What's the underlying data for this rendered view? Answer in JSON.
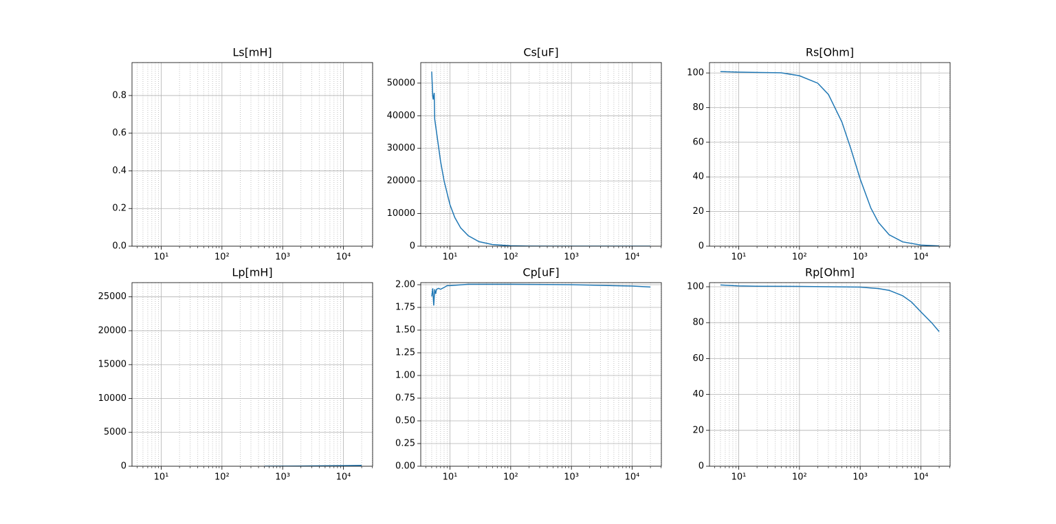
{
  "chart_data": [
    {
      "type": "line",
      "title": "Ls[mH]",
      "xscale": "log",
      "xlim": [
        3.3,
        30300
      ],
      "xticks": [
        {
          "value": 10,
          "label": "10¹"
        },
        {
          "value": 100,
          "label": "10²"
        },
        {
          "value": 1000,
          "label": "10³"
        },
        {
          "value": 10000,
          "label": "10⁴"
        }
      ],
      "xminorticks": [
        4,
        5,
        6,
        7,
        8,
        9,
        20,
        30,
        40,
        50,
        60,
        70,
        80,
        90,
        200,
        300,
        400,
        500,
        600,
        700,
        800,
        900,
        2000,
        3000,
        4000,
        5000,
        6000,
        7000,
        8000,
        9000,
        20000,
        30000
      ],
      "ylim": [
        0,
        0.975
      ],
      "yticks": [
        {
          "value": 0,
          "label": "0.0"
        },
        0.2,
        0.4,
        0.6,
        0.8
      ],
      "grid": true
    },
    {
      "type": "line",
      "title": "Cs[uF]",
      "xscale": "log",
      "xlim": [
        3.3,
        30300
      ],
      "xticks": [
        {
          "value": 10,
          "label": "10¹"
        },
        {
          "value": 100,
          "label": "10²"
        },
        {
          "value": 1000,
          "label": "10³"
        },
        {
          "value": 10000,
          "label": "10⁴"
        }
      ],
      "xminorticks": [
        4,
        5,
        6,
        7,
        8,
        9,
        20,
        30,
        40,
        50,
        60,
        70,
        80,
        90,
        200,
        300,
        400,
        500,
        600,
        700,
        800,
        900,
        2000,
        3000,
        4000,
        5000,
        6000,
        7000,
        8000,
        9000,
        20000,
        30000
      ],
      "ylim": [
        0,
        56300
      ],
      "yticks": [
        0,
        10000,
        20000,
        30000,
        40000,
        50000
      ],
      "grid": true,
      "x": [
        5,
        5.2,
        5.3,
        5.5,
        5.6,
        6,
        7,
        8,
        10,
        12,
        15,
        20,
        30,
        50,
        100,
        200,
        500,
        1000,
        5000,
        20000
      ],
      "series": [
        {
          "color": "#1f77b4",
          "values": [
            53500,
            46000,
            45000,
            47000,
            39000,
            35000,
            26000,
            20000,
            12700,
            8800,
            5600,
            3200,
            1400,
            510,
            130,
            34,
            7,
            3.3,
            2.1,
            2.0
          ]
        }
      ]
    },
    {
      "type": "line",
      "title": "Rs[Ohm]",
      "xscale": "log",
      "xlim": [
        3.3,
        30300
      ],
      "xticks": [
        {
          "value": 10,
          "label": "10¹"
        },
        {
          "value": 100,
          "label": "10²"
        },
        {
          "value": 1000,
          "label": "10³"
        },
        {
          "value": 10000,
          "label": "10⁴"
        }
      ],
      "xminorticks": [
        4,
        5,
        6,
        7,
        8,
        9,
        20,
        30,
        40,
        50,
        60,
        70,
        80,
        90,
        200,
        300,
        400,
        500,
        600,
        700,
        800,
        900,
        2000,
        3000,
        4000,
        5000,
        6000,
        7000,
        8000,
        9000,
        20000,
        30000
      ],
      "ylim": [
        0,
        106
      ],
      "yticks": [
        0,
        20,
        40,
        60,
        80,
        100
      ],
      "grid": true,
      "x": [
        5,
        10,
        20,
        50,
        100,
        200,
        300,
        500,
        700,
        1000,
        1500,
        2000,
        3000,
        5000,
        10000,
        20000
      ],
      "series": [
        {
          "color": "#1f77b4",
          "values": [
            100.8,
            100.5,
            100.3,
            100.1,
            98.4,
            94.1,
            87.6,
            71.7,
            56.4,
            38.8,
            22.0,
            13.7,
            6.6,
            2.5,
            0.63,
            0.16
          ]
        }
      ]
    },
    {
      "type": "line",
      "title": "Lp[mH]",
      "xscale": "log",
      "xlim": [
        3.3,
        30300
      ],
      "xticks": [
        {
          "value": 10,
          "label": "10¹"
        },
        {
          "value": 100,
          "label": "10²"
        },
        {
          "value": 1000,
          "label": "10³"
        },
        {
          "value": 10000,
          "label": "10⁴"
        }
      ],
      "xminorticks": [
        4,
        5,
        6,
        7,
        8,
        9,
        20,
        30,
        40,
        50,
        60,
        70,
        80,
        90,
        200,
        300,
        400,
        500,
        600,
        700,
        800,
        900,
        2000,
        3000,
        4000,
        5000,
        6000,
        7000,
        8000,
        9000,
        20000,
        30000
      ],
      "ylim": [
        0,
        27100
      ],
      "yticks": [
        0,
        5000,
        10000,
        15000,
        20000,
        25000
      ],
      "grid": true,
      "x": [
        500,
        1000,
        2000,
        5000,
        10000,
        20000
      ],
      "series": [
        {
          "color": "#1f77b4",
          "values": [
            5,
            15,
            30,
            60,
            90,
            130
          ]
        }
      ]
    },
    {
      "type": "line",
      "title": "Cp[uF]",
      "xscale": "log",
      "xlim": [
        3.3,
        30300
      ],
      "xticks": [
        {
          "value": 10,
          "label": "10¹"
        },
        {
          "value": 100,
          "label": "10²"
        },
        {
          "value": 1000,
          "label": "10³"
        },
        {
          "value": 10000,
          "label": "10⁴"
        }
      ],
      "xminorticks": [
        4,
        5,
        6,
        7,
        8,
        9,
        20,
        30,
        40,
        50,
        60,
        70,
        80,
        90,
        200,
        300,
        400,
        500,
        600,
        700,
        800,
        900,
        2000,
        3000,
        4000,
        5000,
        6000,
        7000,
        8000,
        9000,
        20000,
        30000
      ],
      "ylim": [
        0,
        2.023
      ],
      "yticks": [
        {
          "value": 0,
          "label": "0.00"
        },
        0.25,
        {
          "value": 0.5,
          "label": "0.50"
        },
        0.75,
        {
          "value": 1,
          "label": "1.00"
        },
        1.25,
        {
          "value": 1.5,
          "label": "1.50"
        },
        1.75,
        {
          "value": 2,
          "label": "2.00"
        }
      ],
      "grid": true,
      "x": [
        5,
        5.2,
        5.4,
        5.6,
        5.8,
        6,
        6.5,
        7,
        8,
        9,
        10,
        20,
        100,
        1000,
        10000,
        20000
      ],
      "series": [
        {
          "color": "#1f77b4",
          "values": [
            1.87,
            1.96,
            1.77,
            1.95,
            1.9,
            1.95,
            1.96,
            1.95,
            1.97,
            1.99,
            1.99,
            2.005,
            2.005,
            2.0,
            1.985,
            1.975
          ]
        }
      ]
    },
    {
      "type": "line",
      "title": "Rp[Ohm]",
      "xscale": "log",
      "xlim": [
        3.3,
        30300
      ],
      "xticks": [
        {
          "value": 10,
          "label": "10¹"
        },
        {
          "value": 100,
          "label": "10²"
        },
        {
          "value": 1000,
          "label": "10³"
        },
        {
          "value": 10000,
          "label": "10⁴"
        }
      ],
      "xminorticks": [
        4,
        5,
        6,
        7,
        8,
        9,
        20,
        30,
        40,
        50,
        60,
        70,
        80,
        90,
        200,
        300,
        400,
        500,
        600,
        700,
        800,
        900,
        2000,
        3000,
        4000,
        5000,
        6000,
        7000,
        8000,
        9000,
        20000,
        30000
      ],
      "ylim": [
        0,
        102.3
      ],
      "yticks": [
        0,
        20,
        40,
        60,
        80,
        100
      ],
      "grid": true,
      "x": [
        5,
        10,
        20,
        100,
        1000,
        2000,
        3000,
        5000,
        7000,
        10000,
        15000,
        20000
      ],
      "series": [
        {
          "color": "#1f77b4",
          "values": [
            101,
            100.5,
            100.3,
            100.2,
            99.8,
            99,
            98,
            95,
            91.5,
            86,
            80,
            75
          ]
        }
      ]
    }
  ]
}
